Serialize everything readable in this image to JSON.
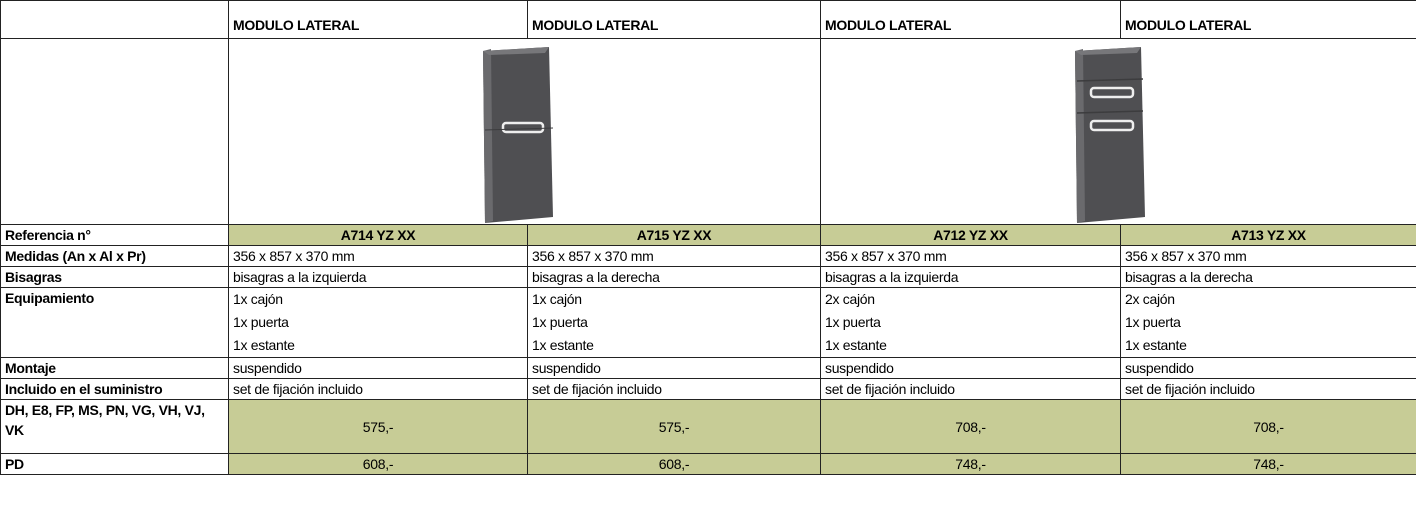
{
  "header": {
    "columns": [
      "MODULO LATERAL",
      "MODULO LATERAL",
      "MODULO LATERAL",
      "MODULO LATERAL"
    ]
  },
  "rows": [
    {
      "label": "Referencia n°",
      "cells": [
        "A714 YZ XX",
        "A715 YZ XX",
        "A712 YZ XX",
        "A713 YZ XX"
      ]
    },
    {
      "label": "Medidas (An x Al x Pr)",
      "cells": [
        "356 x 857 x 370 mm",
        "356 x 857 x 370 mm",
        "356 x 857 x 370 mm",
        "356 x 857 x 370 mm"
      ]
    },
    {
      "label": "Bisagras",
      "cells": [
        "bisagras a la izquierda",
        "bisagras a la derecha",
        "bisagras a la izquierda",
        "bisagras a la derecha"
      ]
    },
    {
      "label": "Equipamiento",
      "cells": [
        [
          "1x cajón",
          "1x puerta",
          "1x estante"
        ],
        [
          "1x cajón",
          "1x puerta",
          "1x estante"
        ],
        [
          "2x cajón",
          "1x puerta",
          "1x estante"
        ],
        [
          "2x cajón",
          "1x puerta",
          "1x estante"
        ]
      ]
    },
    {
      "label": "Montaje",
      "cells": [
        "suspendido",
        "suspendido",
        "suspendido",
        "suspendido"
      ]
    },
    {
      "label": "Incluido en el suministro",
      "cells": [
        "set de fijación incluido",
        "set de fijación incluido",
        "set de fijación incluido",
        "set de fijación incluido"
      ]
    },
    {
      "label": "DH, E8, FP, MS, PN, VG, VH, VJ, VK",
      "cells": [
        "575,-",
        "575,-",
        "708,-",
        "708,-"
      ]
    },
    {
      "label": "PD",
      "cells": [
        "608,-",
        "608,-",
        "748,-",
        "748,-"
      ]
    }
  ]
}
